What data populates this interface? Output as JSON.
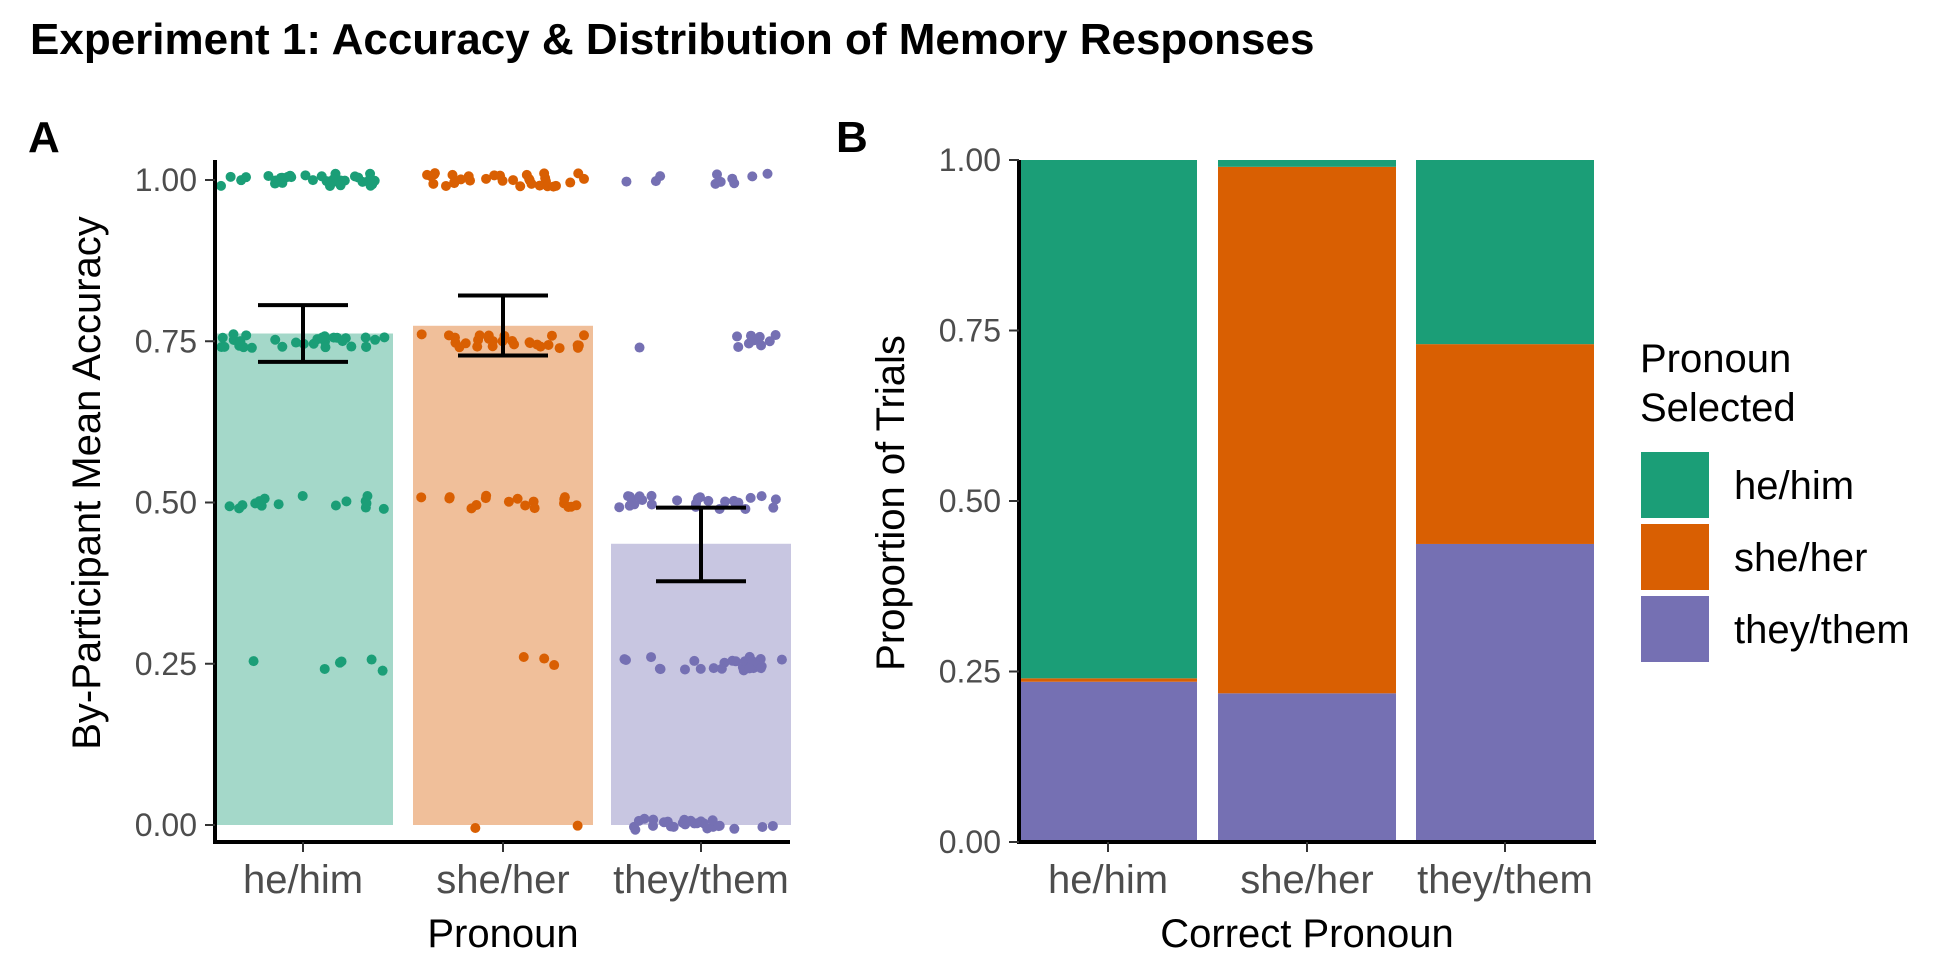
{
  "figure_title": "Experiment 1: Accuracy & Distribution of Memory Responses",
  "colors": {
    "he/him": "#1b9e77",
    "she/her": "#d95f02",
    "they/them": "#7570b3",
    "axis": "#000000",
    "tick_text": "#4d4d4d"
  },
  "chart_data": [
    {
      "panel": "A",
      "type": "bar",
      "xlabel": "Pronoun",
      "ylabel": "By-Participant Mean Accuracy",
      "categories": [
        "he/him",
        "she/her",
        "they/them"
      ],
      "values": [
        0.762,
        0.774,
        0.436
      ],
      "error_bars": [
        {
          "low": 0.718,
          "high": 0.806
        },
        {
          "low": 0.728,
          "high": 0.821
        },
        {
          "low": 0.378,
          "high": 0.492
        }
      ],
      "ylim": [
        0,
        1
      ],
      "yticks": [
        "0.00",
        "0.25",
        "0.50",
        "0.75",
        "1.00"
      ],
      "jitter_points": {
        "he/him": {
          "1.00": 34,
          "0.75": 30,
          "0.50": 16,
          "0.25": 6,
          "0.00": 0
        },
        "she/her": {
          "1.00": 32,
          "0.75": 28,
          "0.50": 18,
          "0.25": 3,
          "0.00": 2
        },
        "they/them": {
          "1.00": 10,
          "0.75": 10,
          "0.50": 26,
          "0.25": 26,
          "0.00": 26
        }
      },
      "grid": false
    },
    {
      "panel": "B",
      "type": "bar",
      "stacked": true,
      "xlabel": "Correct Pronoun",
      "ylabel": "Proportion of Trials",
      "categories": [
        "he/him",
        "she/her",
        "they/them"
      ],
      "series": [
        {
          "name": "they/them",
          "values": [
            0.235,
            0.218,
            0.437
          ]
        },
        {
          "name": "she/her",
          "values": [
            0.005,
            0.772,
            0.293
          ]
        },
        {
          "name": "he/him",
          "values": [
            0.76,
            0.01,
            0.27
          ]
        }
      ],
      "ylim": [
        0,
        1
      ],
      "yticks": [
        "0.00",
        "0.25",
        "0.50",
        "0.75",
        "1.00"
      ],
      "legend": {
        "title_lines": [
          "Pronoun",
          "Selected"
        ],
        "items": [
          "he/him",
          "she/her",
          "they/them"
        ],
        "placement": "right"
      },
      "grid": false
    }
  ]
}
